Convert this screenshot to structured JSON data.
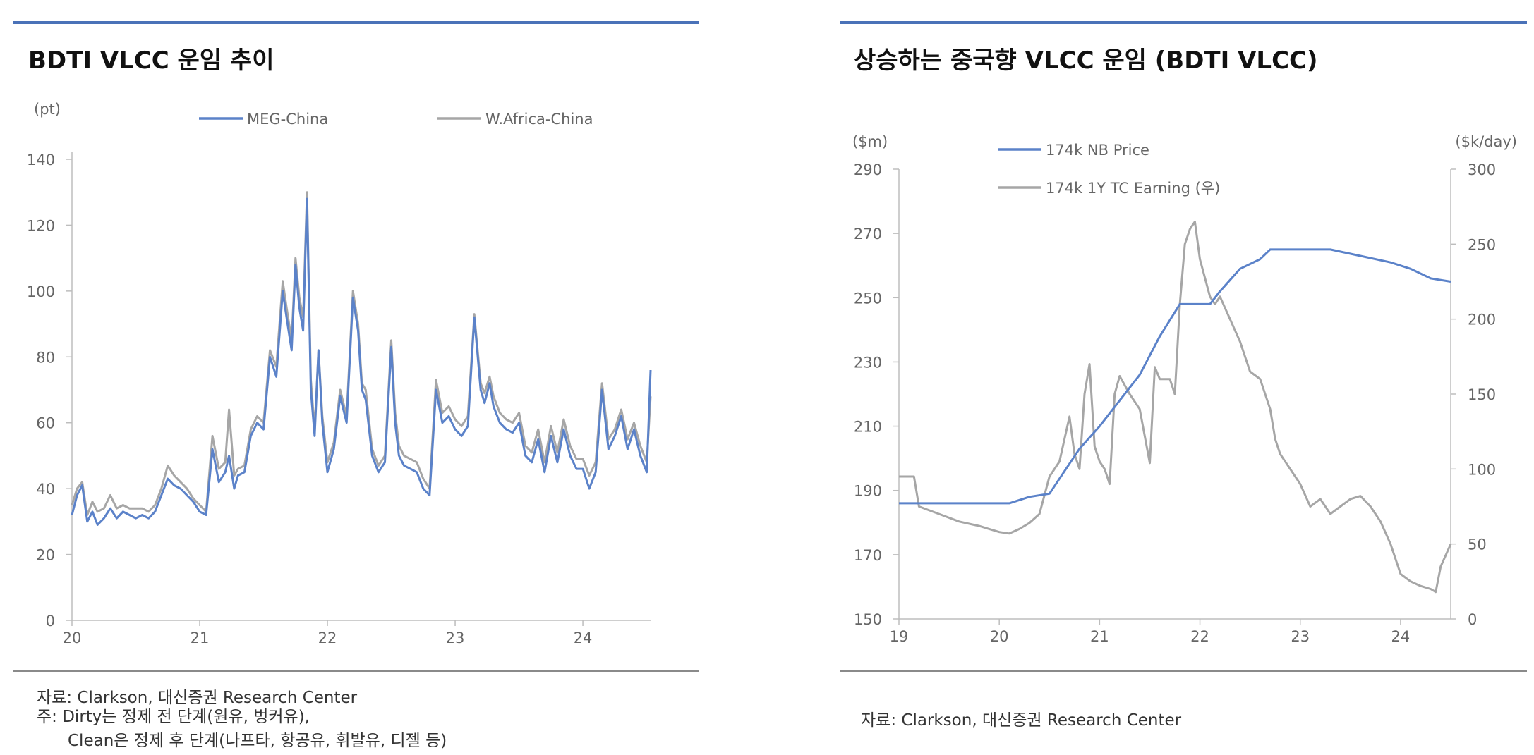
{
  "left": {
    "title": "BDTI VLCC 운임 추이",
    "unit_label": "(pt)",
    "source": "자료: Clarkson, 대신증권 Research Center",
    "note_line1": "주: Dirty는 정제 전 단계(원유, 벙커유),",
    "note_line2": "Clean은 정제 후 단계(나프타, 항공유, 휘발유, 디젤 등)"
  },
  "right": {
    "title": "상승하는 중국향 VLCC 운임 (BDTI VLCC)",
    "unit_left": "($m)",
    "unit_right": "($k/day)",
    "source": "자료: Clarkson, 대신증권 Research Center"
  },
  "colors": {
    "blue": "#5b82c9",
    "gray": "#a6a6a6",
    "rule": "#4a72b8"
  },
  "chart_data": [
    {
      "type": "line",
      "title": "BDTI VLCC 운임 추이",
      "ylabel": "(pt)",
      "xlim": [
        20,
        24.53
      ],
      "ylim": [
        0,
        140
      ],
      "yticks": [
        0,
        20,
        40,
        60,
        80,
        100,
        120,
        140
      ],
      "xticks": [
        20,
        21,
        22,
        23,
        24
      ],
      "legend": "top",
      "series": [
        {
          "name": "MEG-China",
          "color": "#5b82c9",
          "x": [
            20.0,
            20.04,
            20.08,
            20.12,
            20.16,
            20.2,
            20.25,
            20.3,
            20.35,
            20.4,
            20.45,
            20.5,
            20.55,
            20.6,
            20.65,
            20.7,
            20.75,
            20.8,
            20.85,
            20.9,
            20.95,
            21.0,
            21.05,
            21.1,
            21.15,
            21.2,
            21.23,
            21.27,
            21.3,
            21.35,
            21.4,
            21.45,
            21.5,
            21.55,
            21.6,
            21.65,
            21.68,
            21.72,
            21.75,
            21.78,
            21.81,
            21.84,
            21.87,
            21.9,
            21.93,
            21.96,
            22.0,
            22.05,
            22.1,
            22.15,
            22.2,
            22.24,
            22.27,
            22.3,
            22.35,
            22.4,
            22.45,
            22.5,
            22.53,
            22.56,
            22.6,
            22.65,
            22.7,
            22.75,
            22.8,
            22.85,
            22.9,
            22.95,
            23.0,
            23.05,
            23.1,
            23.15,
            23.2,
            23.23,
            23.27,
            23.3,
            23.35,
            23.4,
            23.45,
            23.5,
            23.55,
            23.6,
            23.65,
            23.7,
            23.75,
            23.8,
            23.85,
            23.9,
            23.95,
            24.0,
            24.05,
            24.1,
            24.15,
            24.2,
            24.25,
            24.3,
            24.35,
            24.4,
            24.45,
            24.5,
            24.53
          ],
          "y": [
            32,
            38,
            41,
            30,
            33,
            29,
            31,
            34,
            31,
            33,
            32,
            31,
            32,
            31,
            33,
            38,
            43,
            41,
            40,
            38,
            36,
            33,
            32,
            52,
            42,
            45,
            50,
            40,
            44,
            45,
            56,
            60,
            58,
            80,
            74,
            100,
            92,
            82,
            108,
            95,
            88,
            128,
            70,
            56,
            82,
            60,
            45,
            52,
            68,
            60,
            98,
            88,
            70,
            67,
            50,
            45,
            48,
            83,
            60,
            50,
            47,
            46,
            45,
            40,
            38,
            70,
            60,
            62,
            58,
            56,
            59,
            92,
            70,
            66,
            72,
            65,
            60,
            58,
            57,
            60,
            50,
            48,
            55,
            45,
            56,
            48,
            58,
            50,
            46,
            46,
            40,
            45,
            70,
            52,
            56,
            62,
            52,
            58,
            50,
            45,
            76
          ]
        },
        {
          "name": "W.Africa-China",
          "color": "#a6a6a6",
          "x": [
            20.0,
            20.04,
            20.08,
            20.12,
            20.16,
            20.2,
            20.25,
            20.3,
            20.35,
            20.4,
            20.45,
            20.5,
            20.55,
            20.6,
            20.65,
            20.7,
            20.75,
            20.8,
            20.85,
            20.9,
            20.95,
            21.0,
            21.05,
            21.1,
            21.15,
            21.2,
            21.23,
            21.27,
            21.3,
            21.35,
            21.4,
            21.45,
            21.5,
            21.55,
            21.6,
            21.65,
            21.68,
            21.72,
            21.75,
            21.78,
            21.81,
            21.84,
            21.87,
            21.9,
            21.93,
            21.96,
            22.0,
            22.05,
            22.1,
            22.15,
            22.2,
            22.24,
            22.27,
            22.3,
            22.35,
            22.4,
            22.45,
            22.5,
            22.53,
            22.56,
            22.6,
            22.65,
            22.7,
            22.75,
            22.8,
            22.85,
            22.9,
            22.95,
            23.0,
            23.05,
            23.1,
            23.15,
            23.2,
            23.23,
            23.27,
            23.3,
            23.35,
            23.4,
            23.45,
            23.5,
            23.55,
            23.6,
            23.65,
            23.7,
            23.75,
            23.8,
            23.85,
            23.9,
            23.95,
            24.0,
            24.05,
            24.1,
            24.15,
            24.2,
            24.25,
            24.3,
            24.35,
            24.4,
            24.45,
            24.5,
            24.53
          ],
          "y": [
            35,
            40,
            42,
            32,
            36,
            33,
            34,
            38,
            34,
            35,
            34,
            34,
            34,
            33,
            35,
            40,
            47,
            44,
            42,
            40,
            37,
            35,
            33,
            56,
            46,
            48,
            64,
            44,
            46,
            47,
            58,
            62,
            60,
            82,
            77,
            103,
            95,
            85,
            110,
            98,
            92,
            130,
            73,
            58,
            82,
            62,
            48,
            54,
            70,
            62,
            100,
            90,
            72,
            70,
            52,
            47,
            50,
            85,
            63,
            53,
            50,
            49,
            48,
            43,
            40,
            73,
            63,
            65,
            61,
            59,
            62,
            93,
            72,
            69,
            74,
            68,
            63,
            61,
            60,
            63,
            53,
            51,
            58,
            48,
            59,
            51,
            61,
            53,
            49,
            49,
            44,
            48,
            72,
            55,
            58,
            64,
            55,
            60,
            53,
            48,
            68
          ]
        }
      ]
    },
    {
      "type": "line",
      "title": "상승하는 중국향 VLCC 운임 (BDTI VLCC)",
      "ylabel": "($m)",
      "y2label": "($k/day)",
      "xlim": [
        19,
        24.5
      ],
      "ylim": [
        150,
        290
      ],
      "y2lim": [
        0,
        300
      ],
      "yticks": [
        150,
        170,
        190,
        210,
        230,
        250,
        270,
        290
      ],
      "y2ticks": [
        0,
        50,
        100,
        150,
        200,
        250,
        300
      ],
      "xticks": [
        19,
        20,
        21,
        22,
        23,
        24
      ],
      "legend": "top-left",
      "series": [
        {
          "name": "174k NB Price",
          "axis": "left",
          "color": "#5b82c9",
          "x": [
            19.0,
            20.1,
            20.3,
            20.5,
            20.8,
            21.0,
            21.2,
            21.4,
            21.6,
            21.8,
            21.95,
            22.1,
            22.2,
            22.4,
            22.6,
            22.7,
            23.0,
            23.3,
            23.6,
            23.9,
            24.1,
            24.3,
            24.5
          ],
          "y": [
            186,
            186,
            188,
            189,
            203,
            210,
            218,
            226,
            238,
            248,
            248,
            248,
            252,
            259,
            262,
            265,
            265,
            265,
            263,
            261,
            259,
            256,
            255
          ]
        },
        {
          "name": "174k 1Y TC Earning (우)",
          "axis": "right",
          "color": "#a6a6a6",
          "x": [
            19.0,
            19.15,
            19.2,
            19.4,
            19.6,
            19.8,
            20.0,
            20.1,
            20.2,
            20.3,
            20.4,
            20.5,
            20.6,
            20.7,
            20.75,
            20.8,
            20.85,
            20.9,
            20.95,
            21.0,
            21.05,
            21.1,
            21.15,
            21.2,
            21.3,
            21.4,
            21.5,
            21.55,
            21.6,
            21.7,
            21.75,
            21.8,
            21.85,
            21.9,
            21.95,
            22.0,
            22.1,
            22.15,
            22.2,
            22.3,
            22.4,
            22.5,
            22.6,
            22.7,
            22.75,
            22.8,
            22.9,
            23.0,
            23.1,
            23.2,
            23.3,
            23.4,
            23.5,
            23.6,
            23.7,
            23.8,
            23.9,
            24.0,
            24.1,
            24.2,
            24.3,
            24.35,
            24.4,
            24.5
          ],
          "y": [
            95,
            95,
            75,
            70,
            65,
            62,
            58,
            57,
            60,
            64,
            70,
            95,
            105,
            135,
            110,
            100,
            150,
            170,
            115,
            105,
            100,
            90,
            150,
            162,
            150,
            140,
            104,
            168,
            160,
            160,
            150,
            210,
            250,
            260,
            265,
            240,
            215,
            210,
            215,
            200,
            185,
            165,
            160,
            140,
            120,
            110,
            100,
            90,
            75,
            80,
            70,
            75,
            80,
            82,
            75,
            65,
            50,
            30,
            25,
            22,
            20,
            18,
            35,
            50
          ]
        }
      ]
    }
  ]
}
